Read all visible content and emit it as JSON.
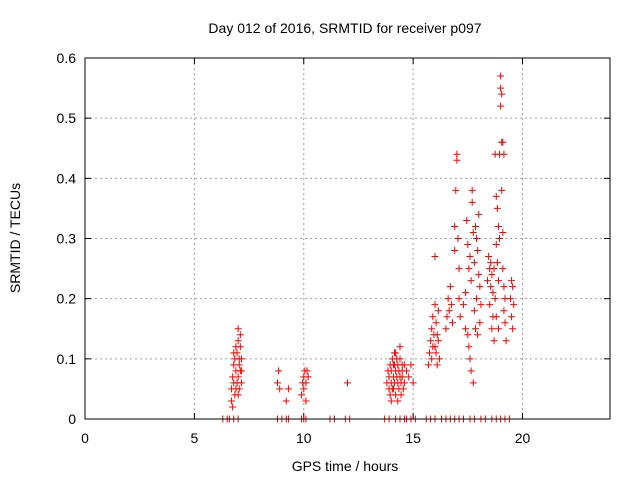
{
  "chart_data": {
    "type": "scatter",
    "title": "Day 012 of 2016, SRMTID for receiver p097",
    "xlabel": "GPS time / hours",
    "ylabel": "SRMTID / TECUs",
    "xlim": [
      0,
      24
    ],
    "ylim": [
      0,
      0.6
    ],
    "x_ticks": [
      0,
      5,
      10,
      15,
      20
    ],
    "x_tick_labels": [
      "0",
      "5",
      "10",
      "15",
      "20"
    ],
    "y_ticks": [
      0,
      0.1,
      0.2,
      0.3,
      0.4,
      0.5,
      0.6
    ],
    "y_tick_labels": [
      "0",
      "0.1",
      "0.2",
      "0.3",
      "0.4",
      "0.5",
      "0.6"
    ],
    "grid": true,
    "marker": "+",
    "color": "#ff0000",
    "series": [
      {
        "name": "p097",
        "points": [
          [
            6.3,
            0
          ],
          [
            6.5,
            0
          ],
          [
            6.6,
            0
          ],
          [
            6.8,
            0
          ],
          [
            7.0,
            0
          ],
          [
            8.8,
            0
          ],
          [
            9.0,
            0
          ],
          [
            9.2,
            0
          ],
          [
            9.3,
            0
          ],
          [
            9.9,
            0
          ],
          [
            10.0,
            0
          ],
          [
            10.1,
            0
          ],
          [
            11.2,
            0
          ],
          [
            11.4,
            0
          ],
          [
            11.9,
            0
          ],
          [
            12.1,
            0
          ],
          [
            13.7,
            0
          ],
          [
            13.9,
            0
          ],
          [
            14.2,
            0
          ],
          [
            14.4,
            0
          ],
          [
            14.6,
            0
          ],
          [
            14.7,
            0
          ],
          [
            14.9,
            0
          ],
          [
            15.1,
            0
          ],
          [
            15.6,
            0
          ],
          [
            15.8,
            0
          ],
          [
            16.0,
            0
          ],
          [
            16.3,
            0
          ],
          [
            16.5,
            0
          ],
          [
            16.7,
            0
          ],
          [
            16.9,
            0
          ],
          [
            17.1,
            0
          ],
          [
            17.3,
            0
          ],
          [
            17.6,
            0
          ],
          [
            17.8,
            0
          ],
          [
            18.1,
            0
          ],
          [
            18.3,
            0
          ],
          [
            18.6,
            0
          ],
          [
            18.8,
            0
          ],
          [
            19.0,
            0
          ],
          [
            19.2,
            0
          ],
          [
            19.4,
            0
          ],
          [
            6.7,
            0.03
          ],
          [
            6.7,
            0.05
          ],
          [
            6.75,
            0.07
          ],
          [
            6.8,
            0.06
          ],
          [
            6.8,
            0.09
          ],
          [
            6.85,
            0.04
          ],
          [
            6.85,
            0.1
          ],
          [
            6.9,
            0.08
          ],
          [
            6.9,
            0.12
          ],
          [
            6.95,
            0.06
          ],
          [
            6.95,
            0.11
          ],
          [
            7.0,
            0.07
          ],
          [
            7.0,
            0.13
          ],
          [
            7.0,
            0.15
          ],
          [
            7.05,
            0.05
          ],
          [
            7.05,
            0.09
          ],
          [
            7.05,
            0.1
          ],
          [
            7.1,
            0.08
          ],
          [
            7.1,
            0.12
          ],
          [
            7.1,
            0.14
          ],
          [
            7.15,
            0.06
          ],
          [
            7.15,
            0.1
          ],
          [
            6.75,
            0.02
          ],
          [
            6.9,
            0.05
          ],
          [
            7.0,
            0.04
          ],
          [
            7.15,
            0.08
          ],
          [
            6.8,
            0.11
          ],
          [
            8.8,
            0.06
          ],
          [
            8.85,
            0.08
          ],
          [
            8.9,
            0.05
          ],
          [
            9.2,
            0.03
          ],
          [
            9.3,
            0.05
          ],
          [
            9.9,
            0.04
          ],
          [
            9.95,
            0.06
          ],
          [
            10.0,
            0.07
          ],
          [
            10.0,
            0.05
          ],
          [
            10.05,
            0.08
          ],
          [
            10.1,
            0.03
          ],
          [
            10.1,
            0.06
          ],
          [
            10.15,
            0.08
          ],
          [
            10.2,
            0.07
          ],
          [
            12.0,
            0.06
          ],
          [
            13.8,
            0.06
          ],
          [
            13.85,
            0.08
          ],
          [
            13.9,
            0.05
          ],
          [
            13.9,
            0.07
          ],
          [
            13.95,
            0.09
          ],
          [
            14.0,
            0.06
          ],
          [
            14.0,
            0.08
          ],
          [
            14.05,
            0.1
          ],
          [
            14.05,
            0.05
          ],
          [
            14.1,
            0.07
          ],
          [
            14.1,
            0.09
          ],
          [
            14.15,
            0.11
          ],
          [
            14.15,
            0.06
          ],
          [
            14.2,
            0.08
          ],
          [
            14.2,
            0.04
          ],
          [
            14.25,
            0.07
          ],
          [
            14.25,
            0.1
          ],
          [
            14.3,
            0.06
          ],
          [
            14.3,
            0.09
          ],
          [
            14.35,
            0.05
          ],
          [
            14.35,
            0.08
          ],
          [
            14.4,
            0.07
          ],
          [
            14.4,
            0.1
          ],
          [
            14.45,
            0.06
          ],
          [
            14.45,
            0.04
          ],
          [
            14.5,
            0.08
          ],
          [
            14.5,
            0.07
          ],
          [
            14.55,
            0.05
          ],
          [
            14.6,
            0.09
          ],
          [
            14.6,
            0.06
          ],
          [
            14.7,
            0.08
          ],
          [
            14.8,
            0.07
          ],
          [
            14.9,
            0.09
          ],
          [
            15.0,
            0.06
          ],
          [
            13.95,
            0.04
          ],
          [
            14.0,
            0.03
          ],
          [
            14.1,
            0.05
          ],
          [
            14.3,
            0.03
          ],
          [
            14.4,
            0.12
          ],
          [
            14.5,
            0.09
          ],
          [
            14.2,
            0.11
          ],
          [
            14.15,
            0.09
          ],
          [
            15.7,
            0.09
          ],
          [
            15.75,
            0.11
          ],
          [
            15.8,
            0.13
          ],
          [
            15.85,
            0.1
          ],
          [
            15.85,
            0.15
          ],
          [
            15.9,
            0.12
          ],
          [
            15.9,
            0.17
          ],
          [
            15.95,
            0.14
          ],
          [
            16.0,
            0.12
          ],
          [
            16.0,
            0.19
          ],
          [
            16.0,
            0.27
          ],
          [
            16.05,
            0.16
          ],
          [
            16.05,
            0.11
          ],
          [
            16.1,
            0.14
          ],
          [
            16.1,
            0.09
          ],
          [
            16.15,
            0.13
          ],
          [
            16.15,
            0.18
          ],
          [
            16.2,
            0.1
          ],
          [
            16.5,
            0.15
          ],
          [
            16.55,
            0.17
          ],
          [
            16.6,
            0.2
          ],
          [
            16.65,
            0.18
          ],
          [
            16.7,
            0.22
          ],
          [
            16.75,
            0.19
          ],
          [
            16.8,
            0.16
          ],
          [
            16.9,
            0.28
          ],
          [
            16.9,
            0.32
          ],
          [
            16.95,
            0.38
          ],
          [
            17.0,
            0.43
          ],
          [
            17.0,
            0.44
          ],
          [
            17.05,
            0.3
          ],
          [
            17.1,
            0.25
          ],
          [
            17.1,
            0.2
          ],
          [
            17.15,
            0.17
          ],
          [
            17.3,
            0.19
          ],
          [
            17.4,
            0.21
          ],
          [
            17.4,
            0.15
          ],
          [
            17.45,
            0.33
          ],
          [
            17.5,
            0.29
          ],
          [
            17.5,
            0.14
          ],
          [
            17.55,
            0.25
          ],
          [
            17.55,
            0.12
          ],
          [
            17.6,
            0.27
          ],
          [
            17.6,
            0.1
          ],
          [
            17.65,
            0.23
          ],
          [
            17.65,
            0.08
          ],
          [
            17.7,
            0.38
          ],
          [
            17.7,
            0.36
          ],
          [
            17.75,
            0.31
          ],
          [
            17.75,
            0.06
          ],
          [
            17.8,
            0.26
          ],
          [
            17.8,
            0.18
          ],
          [
            17.85,
            0.32
          ],
          [
            17.85,
            0.15
          ],
          [
            17.9,
            0.3
          ],
          [
            17.9,
            0.2
          ],
          [
            17.95,
            0.28
          ],
          [
            17.95,
            0.14
          ],
          [
            18.0,
            0.34
          ],
          [
            18.0,
            0.24
          ],
          [
            18.05,
            0.22
          ],
          [
            18.05,
            0.16
          ],
          [
            18.1,
            0.19
          ],
          [
            18.4,
            0.23
          ],
          [
            18.45,
            0.27
          ],
          [
            18.5,
            0.25
          ],
          [
            18.5,
            0.19
          ],
          [
            18.55,
            0.26
          ],
          [
            18.55,
            0.22
          ],
          [
            18.6,
            0.24
          ],
          [
            18.6,
            0.15
          ],
          [
            18.65,
            0.21
          ],
          [
            18.65,
            0.17
          ],
          [
            18.7,
            0.25
          ],
          [
            18.7,
            0.13
          ],
          [
            18.75,
            0.44
          ],
          [
            18.75,
            0.2
          ],
          [
            18.8,
            0.37
          ],
          [
            18.8,
            0.29
          ],
          [
            18.8,
            0.17
          ],
          [
            18.85,
            0.35
          ],
          [
            18.85,
            0.26
          ],
          [
            18.9,
            0.32
          ],
          [
            18.9,
            0.23
          ],
          [
            18.9,
            0.15
          ],
          [
            18.95,
            0.44
          ],
          [
            18.95,
            0.3
          ],
          [
            19.0,
            0.57
          ],
          [
            19.0,
            0.55
          ],
          [
            19.0,
            0.52
          ],
          [
            19.05,
            0.54
          ],
          [
            19.05,
            0.46
          ],
          [
            19.05,
            0.38
          ],
          [
            19.1,
            0.46
          ],
          [
            19.1,
            0.31
          ],
          [
            19.1,
            0.25
          ],
          [
            19.15,
            0.44
          ],
          [
            19.15,
            0.22
          ],
          [
            19.15,
            0.18
          ],
          [
            19.2,
            0.2
          ],
          [
            19.2,
            0.16
          ],
          [
            19.25,
            0.13
          ],
          [
            19.45,
            0.2
          ],
          [
            19.5,
            0.23
          ],
          [
            19.5,
            0.17
          ],
          [
            19.55,
            0.22
          ],
          [
            19.55,
            0.15
          ],
          [
            19.6,
            0.19
          ]
        ]
      }
    ]
  }
}
